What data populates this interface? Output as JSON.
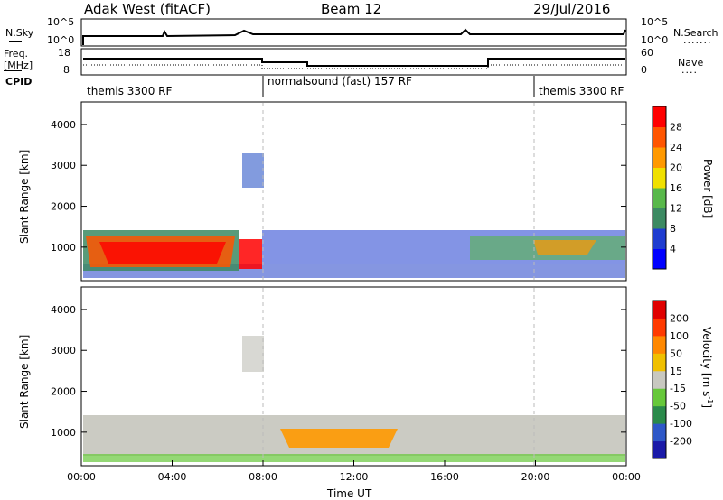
{
  "header": {
    "title": "Adak West (fitACF)",
    "beam": "Beam 12",
    "date": "29/Jul/2016"
  },
  "top_panels": {
    "nsky_label": "N.Sky",
    "nsearch_label": "N.Search",
    "nsky_ticks": [
      "10^5",
      "10^0"
    ],
    "nsearch_ticks": [
      "10^5",
      "10^0"
    ],
    "freq_label_1": "Freq.",
    "freq_label_2": "[MHz]",
    "freq_ticks": [
      "18",
      "8"
    ],
    "nave_label": "Nave",
    "nave_ticks": [
      "60",
      "0"
    ],
    "cpid_label": "CPID",
    "cpid_segments": [
      {
        "label": "themis 3300 RF"
      },
      {
        "label": "normalsound (fast) 157 RF"
      },
      {
        "label": "themis 3300 RF"
      }
    ]
  },
  "chart_data": [
    {
      "type": "heatmap",
      "name": "power",
      "ylabel": "Slant Range [km]",
      "xlabel": "Time UT",
      "yticks": [
        "4000",
        "3000",
        "2000",
        "1000"
      ],
      "ylim": [
        180,
        4550
      ],
      "xlim_hours": [
        0,
        24
      ],
      "xticks": [
        "00:00",
        "04:00",
        "08:00",
        "12:00",
        "16:00",
        "20:00",
        "00:00"
      ],
      "colorbar_label": "Power [dB]",
      "colorbar_ticks": [
        "28",
        "24",
        "20",
        "16",
        "12",
        "8",
        "4"
      ],
      "colorbar_colors": [
        "#0000ff",
        "#1e3cd0",
        "#3c8a62",
        "#58b84a",
        "#f0e000",
        "#ff9900",
        "#ff5500",
        "#ff0000"
      ]
    },
    {
      "type": "heatmap",
      "name": "velocity",
      "ylabel": "Slant Range [km]",
      "xlabel": "Time UT",
      "yticks": [
        "4000",
        "3000",
        "2000",
        "1000"
      ],
      "ylim": [
        180,
        4550
      ],
      "xlim_hours": [
        0,
        24
      ],
      "xticks": [
        "00:00",
        "04:00",
        "08:00",
        "12:00",
        "16:00",
        "20:00",
        "00:00"
      ],
      "colorbar_label": "Velocity [m s",
      "colorbar_label_sup": "-1",
      "colorbar_label_end": "]",
      "colorbar_ticks": [
        "200",
        "100",
        "50",
        "15",
        "-15",
        "-50",
        "-100",
        "-200"
      ],
      "colorbar_colors": [
        "#1a1aa8",
        "#2e58c8",
        "#2a8a4a",
        "#66c83a",
        "#c8c8c0",
        "#f0c000",
        "#ff8800",
        "#ff3a00",
        "#e00000"
      ]
    }
  ]
}
